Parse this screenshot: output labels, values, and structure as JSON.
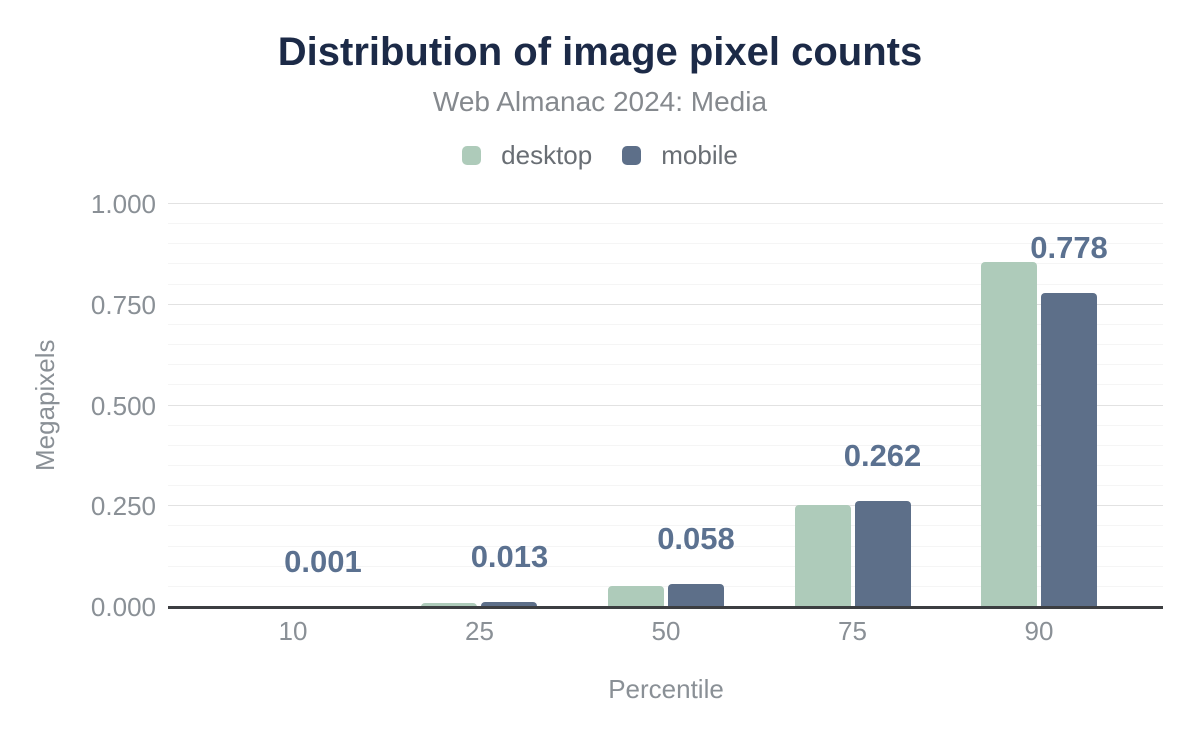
{
  "chart": {
    "title": "Distribution of image pixel counts",
    "subtitle": "Web Almanac 2024: Media"
  },
  "chart_data": {
    "type": "bar",
    "title": "Distribution of image pixel counts",
    "subtitle": "Web Almanac 2024: Media",
    "xlabel": "Percentile",
    "ylabel": "Megapixels",
    "categories": [
      "10",
      "25",
      "50",
      "75",
      "90"
    ],
    "series": [
      {
        "name": "desktop",
        "color": "#aecbba",
        "values": [
          0.001,
          0.011,
          0.053,
          0.252,
          0.856
        ]
      },
      {
        "name": "mobile",
        "color": "#5d6f89",
        "values": [
          0.001,
          0.013,
          0.058,
          0.262,
          0.778
        ]
      }
    ],
    "data_labels": [
      "0.001",
      "0.013",
      "0.058",
      "0.262",
      "0.778"
    ],
    "data_labels_series": "mobile",
    "ylim": [
      0,
      1.0
    ],
    "yticks": [
      {
        "value": 0.0,
        "label": "0.000"
      },
      {
        "value": 0.25,
        "label": "0.250"
      },
      {
        "value": 0.5,
        "label": "0.500"
      },
      {
        "value": 0.75,
        "label": "0.750"
      },
      {
        "value": 1.0,
        "label": "1.000"
      }
    ],
    "minor_tick_step": 0.05,
    "grid": true,
    "legend_position": "top"
  }
}
